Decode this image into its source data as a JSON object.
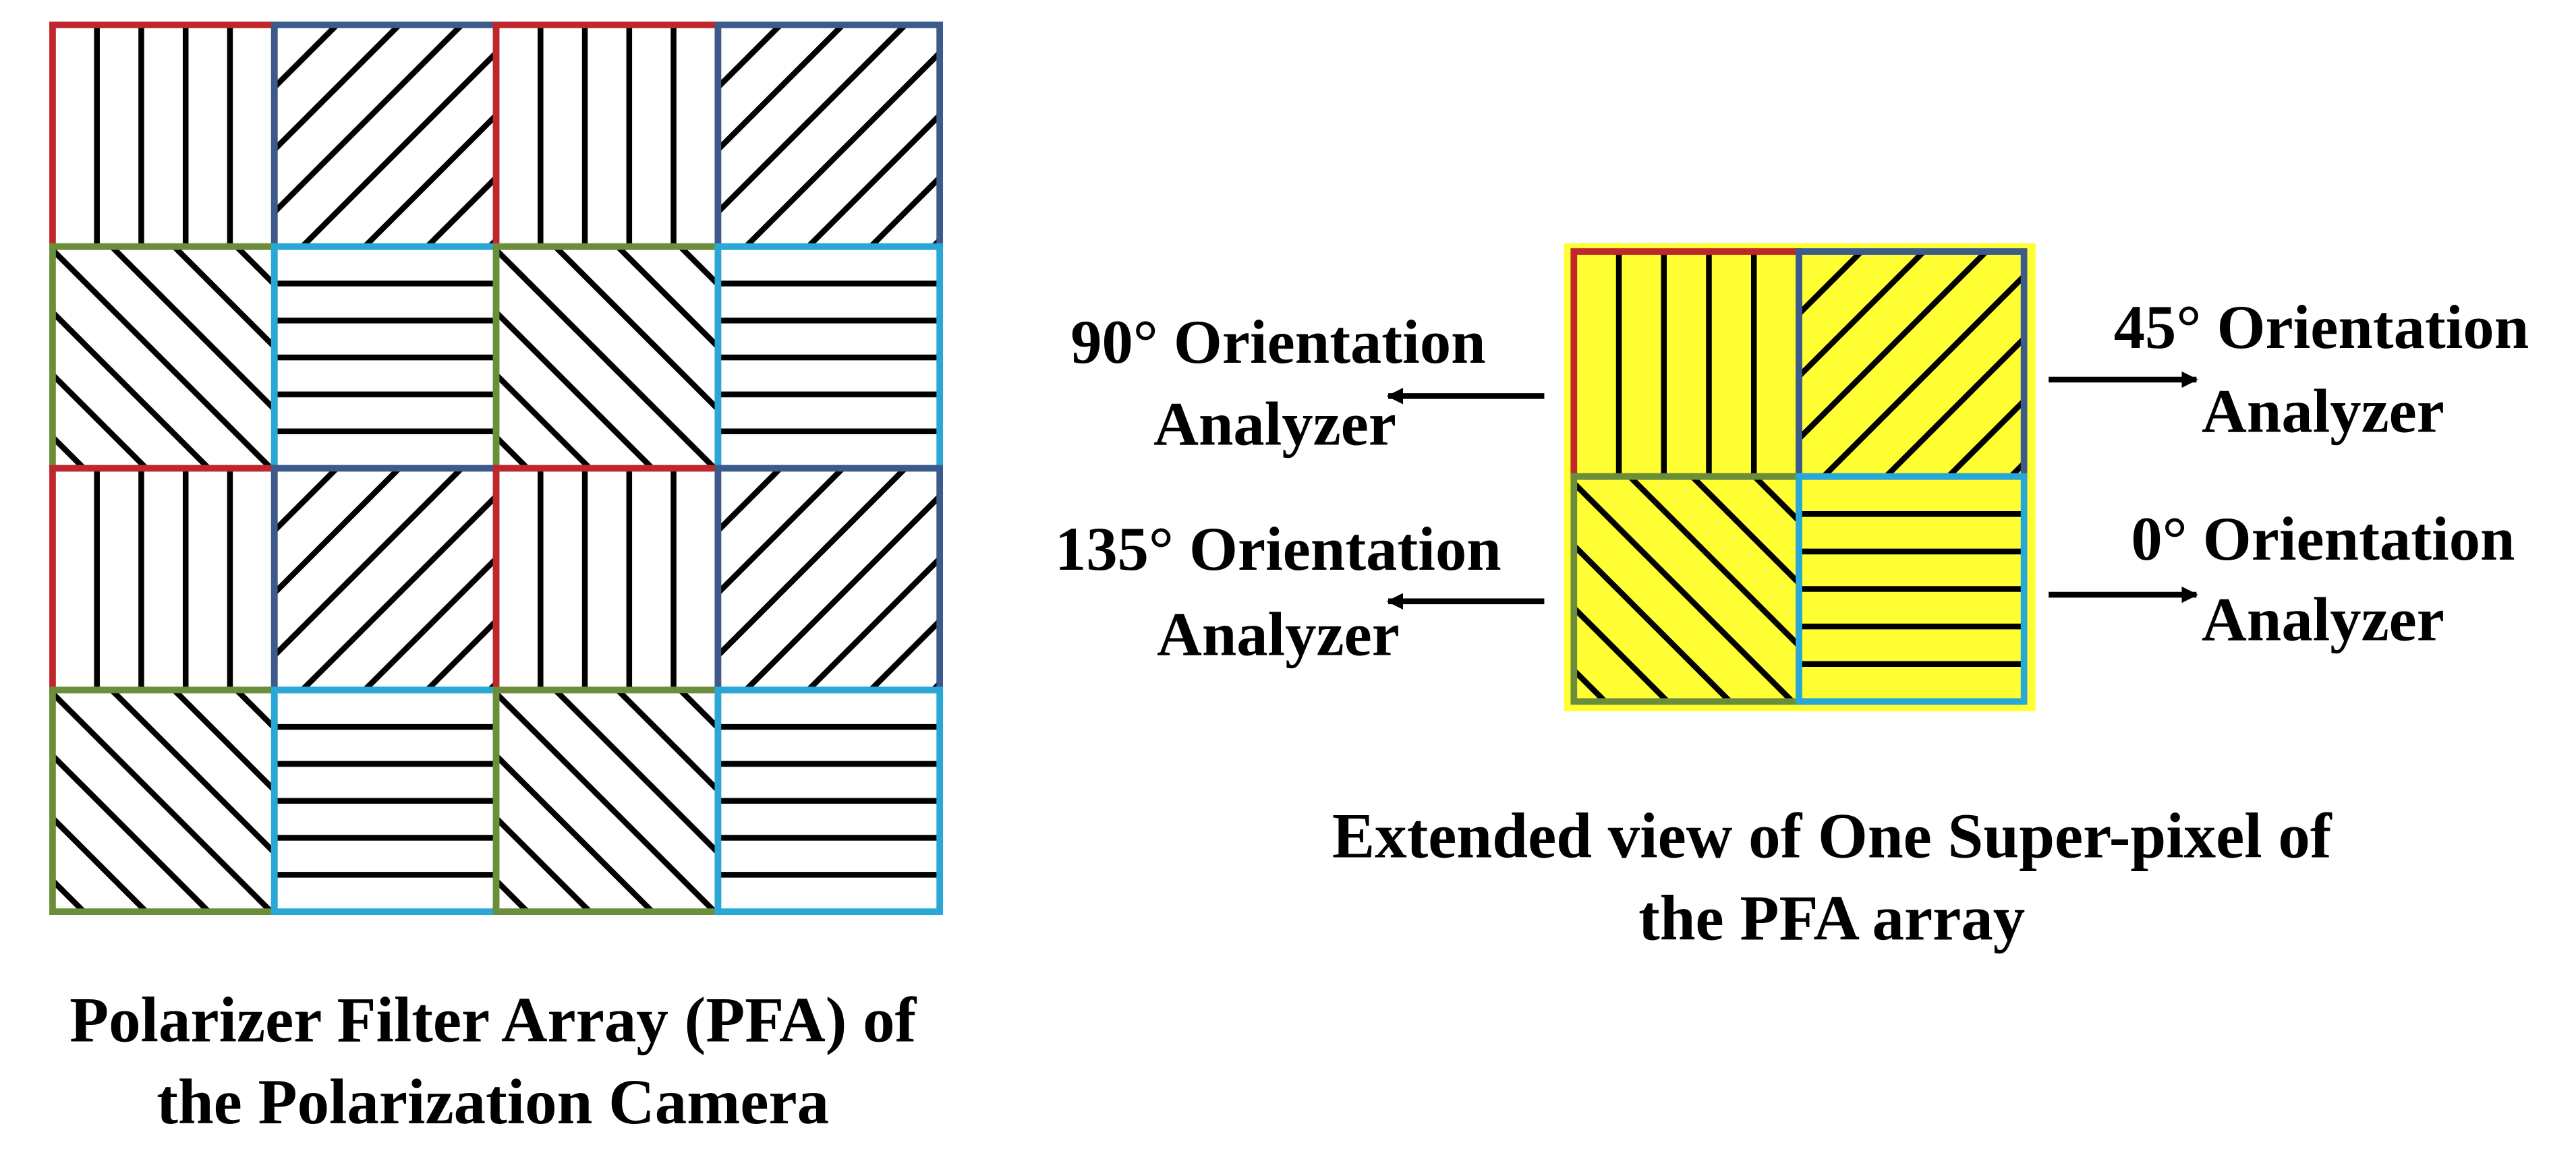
{
  "left_caption": {
    "line1": "Polarizer Filter Array (PFA) of",
    "line2": "the Polarization Camera"
  },
  "right_caption": {
    "line1": "Extended view of One Super-pixel of",
    "line2": "the PFA array"
  },
  "labels": [
    {
      "line1": "90° Orientation",
      "line2": "Analyzer"
    },
    {
      "line1": "135° Orientation",
      "line2": "Analyzer"
    },
    {
      "line1": "45° Orientation",
      "line2": "Analyzer"
    },
    {
      "line1": "0° Orientation",
      "line2": "Analyzer"
    }
  ]
}
